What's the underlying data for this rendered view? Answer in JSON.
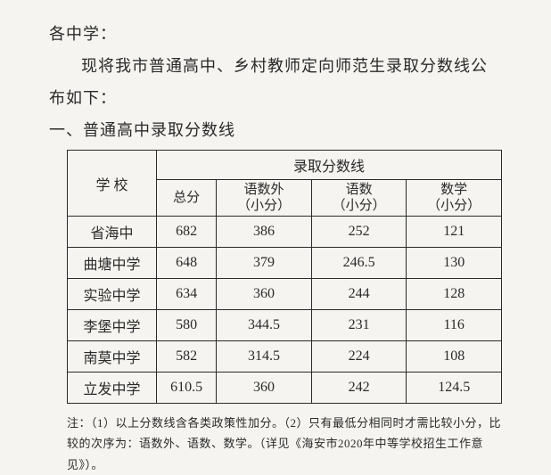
{
  "greeting": "各中学：",
  "intro": "现将我市普通高中、乡村教师定向师范生录取分数线公布如下：",
  "section_title": "一、普通高中录取分数线",
  "table": {
    "col_school": "学 校",
    "col_scores": "录取分数线",
    "col_total": "总分",
    "col_yuwaishu_label": "语数外",
    "col_yuwaishu_sub": "（小分）",
    "col_yushu_label": "语数",
    "col_yushu_sub": "（小分）",
    "col_shuxue_label": "数学",
    "col_shuxue_sub": "（小分）",
    "rows": [
      {
        "school": "省海中",
        "total": "682",
        "ysw": "386",
        "ys": "252",
        "sx": "121"
      },
      {
        "school": "曲塘中学",
        "total": "648",
        "ysw": "379",
        "ys": "246.5",
        "sx": "130"
      },
      {
        "school": "实验中学",
        "total": "634",
        "ysw": "360",
        "ys": "244",
        "sx": "128"
      },
      {
        "school": "李堡中学",
        "total": "580",
        "ysw": "344.5",
        "ys": "231",
        "sx": "116"
      },
      {
        "school": "南莫中学",
        "total": "582",
        "ysw": "314.5",
        "ys": "224",
        "sx": "108"
      },
      {
        "school": "立发中学",
        "total": "610.5",
        "ysw": "360",
        "ys": "242",
        "sx": "124.5"
      }
    ]
  },
  "footnote": "注：（1）以上分数线含各类政策性加分。（2）只有最低分相同时才需比较小分，比较的次序为：语数外、语数、数学。（详见《海安市2020年中等学校招生工作意见》）。"
}
